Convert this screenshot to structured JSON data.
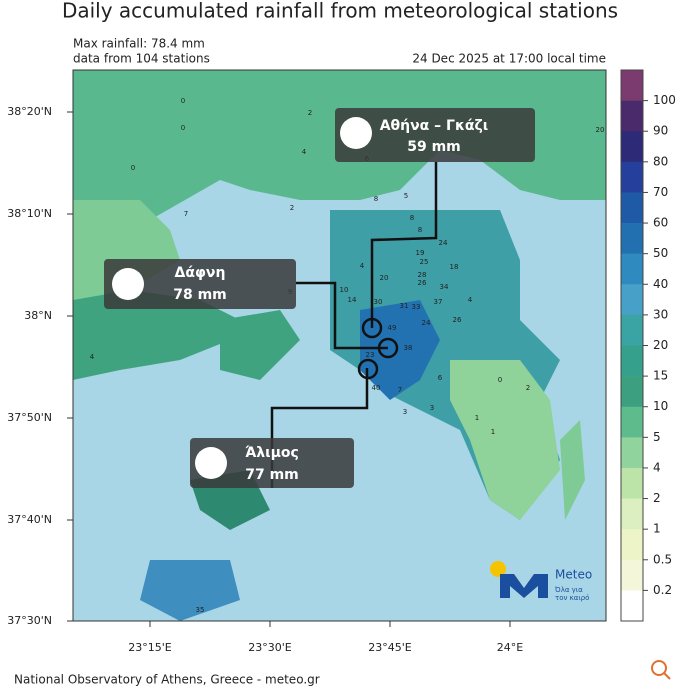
{
  "header": {
    "title": "Daily accumulated rainfall from meteorological stations",
    "max_rainfall": "Max rainfall: 78.4 mm",
    "stations": "data from 104 stations",
    "timestamp": "24 Dec 2025 at 17:00 local time"
  },
  "lat_labels": [
    "38°20'N",
    "38°10'N",
    "38°N",
    "37°50'N",
    "37°40'N",
    "37°30'N"
  ],
  "lon_labels": [
    "23°15'E",
    "23°30'E",
    "23°45'E",
    "24°E"
  ],
  "callouts": [
    {
      "name": "Αθήνα – Γκάζι",
      "value": "59 mm"
    },
    {
      "name": "Δάφνη",
      "value": "78 mm"
    },
    {
      "name": "Άλιμος",
      "value": "77 mm"
    }
  ],
  "station_values": [
    "0",
    "0",
    "0",
    "2",
    "4",
    "6",
    "7",
    "2",
    "8",
    "5",
    "8",
    "19",
    "24",
    "25",
    "18",
    "28",
    "26",
    "34",
    "37",
    "30",
    "20",
    "14",
    "10",
    "9",
    "31",
    "33",
    "24",
    "26",
    "49",
    "38",
    "23",
    "40",
    "7",
    "3",
    "3",
    "1",
    "0",
    "2",
    "1",
    "4",
    "4",
    "6",
    "35",
    "20",
    "8",
    "4"
  ],
  "colorbar": {
    "ticks": [
      100,
      90,
      80,
      70,
      60,
      50,
      40,
      30,
      20,
      15,
      10,
      5,
      4,
      2,
      1,
      0.5,
      0.2
    ],
    "colors": [
      "#7b3b6f",
      "#4b2a6b",
      "#2d2a78",
      "#25409c",
      "#1f5aa6",
      "#2270b0",
      "#2f8ac0",
      "#47a0c8",
      "#3aa3a3",
      "#35a08c",
      "#3c9f80",
      "#5dbb8c",
      "#91d39c",
      "#bce4a8",
      "#dcefc0",
      "#edf4c8",
      "#f3f6d8",
      "#ffffff"
    ]
  },
  "logo": {
    "name": "Meteo",
    "tagline_1": "Όλα για",
    "tagline_2": "τον καιρό"
  },
  "footer": "National Observatory of Athens, Greece - meteo.gr"
}
